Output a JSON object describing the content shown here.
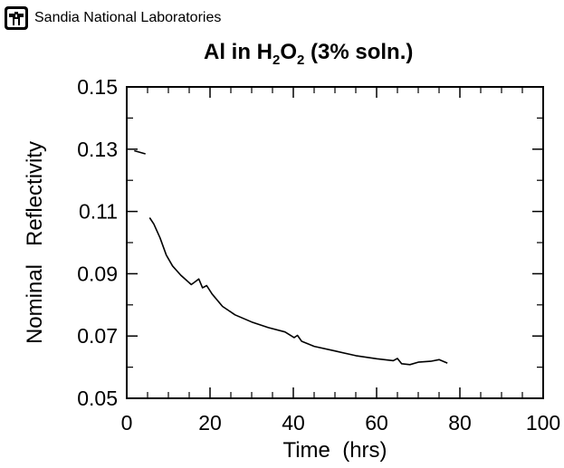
{
  "header": {
    "organization": "Sandia National Laboratories",
    "logo_icon": "sandia-thunderbird-icon"
  },
  "chart_data": {
    "type": "line",
    "title_parts": [
      "Al in H",
      "2",
      "O",
      "2",
      " (3% soln.)"
    ],
    "xlabel": "Time  (hrs)",
    "ylabel": "Nominal   Reflectivity",
    "xlim": [
      0,
      100
    ],
    "ylim": [
      0.05,
      0.15
    ],
    "xticks": [
      "0",
      "20",
      "40",
      "60",
      "80",
      "100"
    ],
    "yticks": [
      "0.05",
      "0.07",
      "0.09",
      "0.11",
      "0.13",
      "0.15"
    ],
    "grid": false,
    "series": [
      {
        "values_x": [
          1.8,
          4.5
        ],
        "values_y": [
          0.1295,
          0.1285
        ]
      },
      {
        "values_x": [
          5.5,
          6.5,
          8.0,
          9.5,
          11.0,
          13.0,
          15.5,
          16.5,
          17.3,
          18.2,
          19.2,
          20.5,
          23.0,
          26.0,
          30.0,
          34.0,
          38.0,
          40.2,
          41.0,
          42.0,
          45.0,
          50.0,
          55.0,
          60.0,
          64.0,
          65.0,
          66.0,
          68.0,
          70.0,
          73.0,
          75.0,
          77.0
        ],
        "values_y": [
          0.108,
          0.106,
          0.1015,
          0.096,
          0.0925,
          0.0895,
          0.0865,
          0.0875,
          0.0883,
          0.0855,
          0.0862,
          0.0835,
          0.0795,
          0.0768,
          0.0745,
          0.0727,
          0.0713,
          0.0695,
          0.0702,
          0.0683,
          0.0667,
          0.0652,
          0.0637,
          0.0627,
          0.0621,
          0.0628,
          0.0611,
          0.0608,
          0.0616,
          0.0619,
          0.0624,
          0.0613
        ]
      }
    ]
  }
}
